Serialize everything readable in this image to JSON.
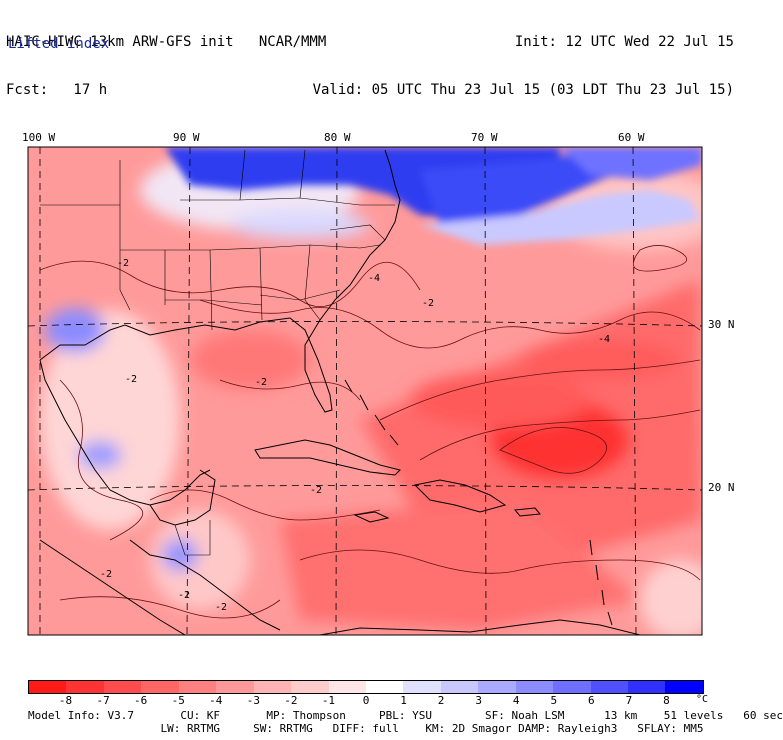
{
  "header": {
    "line1_left": "HAIC-HIWC 13km ARW-GFS init   NCAR/MMM",
    "line2_left": "Fcst:   17 h",
    "line1_right": "Init: 12 UTC Wed 22 Jul 15",
    "line2_right": "Valid: 05 UTC Thu 23 Jul 15 (03 LDT Thu 23 Jul 15)",
    "field": "Lifted index"
  },
  "axes": {
    "lon_labels": [
      "100 W",
      "90 W",
      "80 W",
      "70 W",
      "60 W"
    ],
    "lat_labels": [
      "30 N",
      "20 N"
    ]
  },
  "contour_labels": [
    "-2",
    "-4"
  ],
  "colorbar": {
    "labels": [
      "-8",
      "-7",
      "-6",
      "-5",
      "-4",
      "-3",
      "-2",
      "-1",
      "0",
      "1",
      "2",
      "3",
      "4",
      "5",
      "6",
      "7",
      "8"
    ],
    "unit": "°C",
    "colors": [
      "#ff1a1a",
      "#ff3333",
      "#ff4d4d",
      "#ff6666",
      "#ff8080",
      "#ff9999",
      "#ffb3b3",
      "#ffcccc",
      "#ffe6e6",
      "#ffffff",
      "#e0e0ff",
      "#c8c8ff",
      "#aaaaff",
      "#8c8cff",
      "#6e6eff",
      "#5050ff",
      "#3030ff",
      "#0000ff"
    ]
  },
  "footer": {
    "line1": "Model Info: V3.7       CU: KF       MP: Thompson     PBL: YSU        SF: Noah LSM      13 km    51 levels   60 sec",
    "line2": "                    LW: RRTMG     SW: RRTMG   DIFF: full    KM: 2D Smagor DAMP: Rayleigh3   SFLAY: MM5"
  }
}
